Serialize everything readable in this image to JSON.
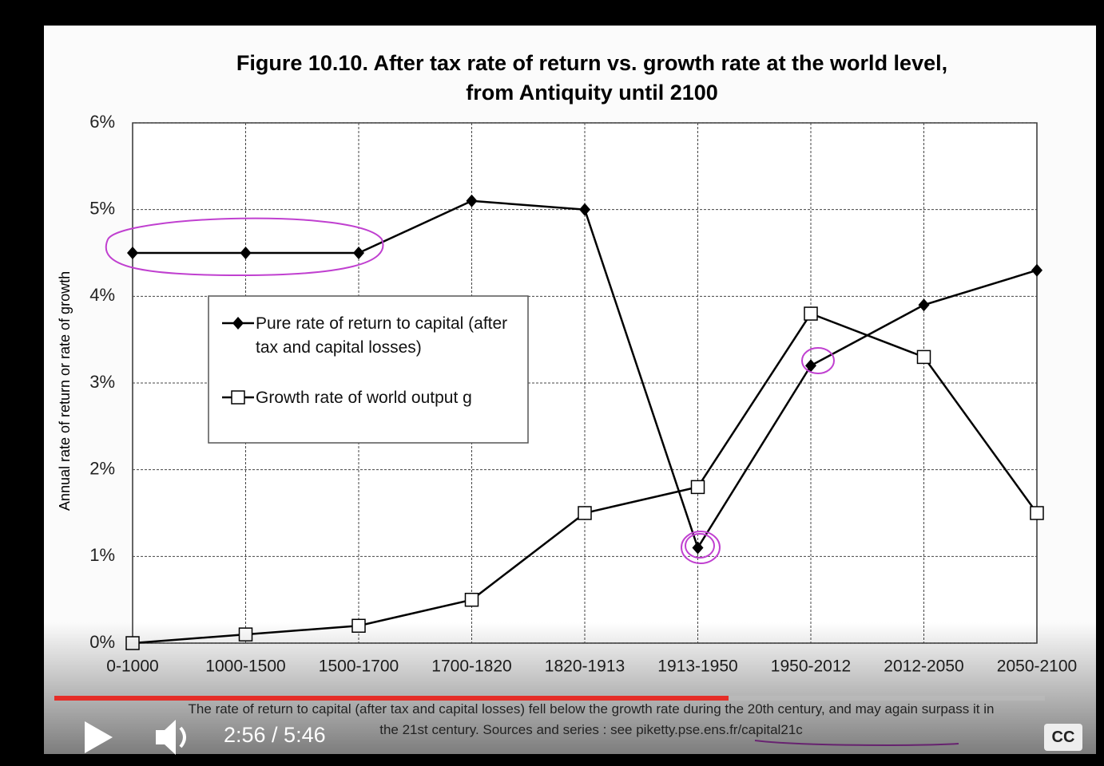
{
  "chart_data": {
    "type": "line",
    "title": "Figure 10.10. After tax rate of return vs. growth rate at the world level,",
    "subtitle": "from Antiquity until 2100",
    "y_label": "Annual rate of return or rate of growth",
    "categories": [
      "0-1000",
      "1000-1500",
      "1500-1700",
      "1700-1820",
      "1820-1913",
      "1913-1950",
      "1950-2012",
      "2012-2050",
      "2050-2100"
    ],
    "series": [
      {
        "name": "Pure rate of return to capital (after tax and capital losses)",
        "color": "#000000",
        "marker": "diamond",
        "values": [
          4.5,
          4.5,
          4.5,
          5.1,
          5.0,
          1.1,
          3.2,
          3.9,
          4.3
        ]
      },
      {
        "name": "Growth rate of world output g",
        "color": "#000000",
        "marker": "square",
        "values": [
          0.0,
          0.1,
          0.2,
          0.5,
          1.5,
          1.8,
          3.8,
          3.3,
          1.5
        ]
      }
    ],
    "ylim": [
      0,
      6
    ],
    "yticks": [
      {
        "value": 0,
        "label": "0%"
      },
      {
        "value": 1,
        "label": "1%"
      },
      {
        "value": 2,
        "label": "2%"
      },
      {
        "value": 3,
        "label": "3%"
      },
      {
        "value": 4,
        "label": "4%"
      },
      {
        "value": 5,
        "label": "5%"
      },
      {
        "value": 6,
        "label": "6%"
      }
    ],
    "grid": true,
    "note": "The rate of return to capital (after tax and capital losses) fell below the growth rate during the 20th century, and may again surpass it in the 21st century. Sources and series : see piketty.pse.ens.fr/capital21c"
  },
  "player": {
    "time": "2:56 / 5:46",
    "captions": "CC"
  }
}
